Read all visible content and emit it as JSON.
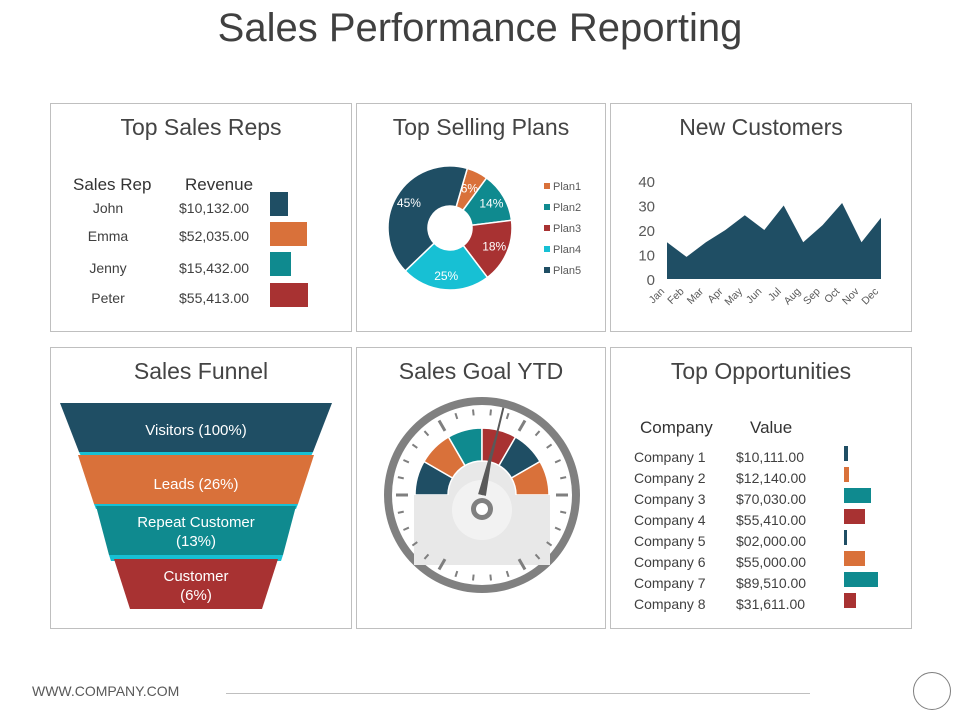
{
  "title": "Sales Performance Reporting",
  "colors": {
    "navy": "#1f4e64",
    "orange": "#d9713a",
    "teal": "#0f8a8f",
    "red": "#a83232",
    "cyan": "#17c0d4"
  },
  "top_sales_reps": {
    "title": "Top Sales Reps",
    "col_rep": "Sales Rep",
    "col_revenue": "Revenue",
    "rows": [
      {
        "name": "John",
        "revenue": "$10,132.00"
      },
      {
        "name": "Emma",
        "revenue": "$52,035.00"
      },
      {
        "name": "Jenny",
        "revenue": "$15,432.00"
      },
      {
        "name": "Peter",
        "revenue": "$55,413.00"
      }
    ]
  },
  "top_selling_plans": {
    "title": "Top Selling Plans"
  },
  "new_customers": {
    "title": "New Customers"
  },
  "sales_funnel": {
    "title": "Sales Funnel",
    "stages": [
      "Visitors (100%)",
      "Leads (26%)",
      "Repeat Customer\n(13%)",
      "Customer\n(6%)"
    ]
  },
  "sales_goal": {
    "title": "Sales Goal YTD"
  },
  "top_opportunities": {
    "title": "Top Opportunities",
    "col_company": "Company",
    "col_value": "Value",
    "rows": [
      {
        "company": "Company 1",
        "value": "$10,111.00"
      },
      {
        "company": "Company 2",
        "value": "$12,140.00"
      },
      {
        "company": "Company 3",
        "value": "$70,030.00"
      },
      {
        "company": "Company 4",
        "value": "$55,410.00"
      },
      {
        "company": "Company 5",
        "value": "$02,000.00"
      },
      {
        "company": "Company 6",
        "value": "$55,000.00"
      },
      {
        "company": "Company 7",
        "value": "$89,510.00"
      },
      {
        "company": "Company 8",
        "value": "$31,611.00"
      }
    ]
  },
  "footer": {
    "url": "WWW.COMPANY.COM"
  },
  "chart_data": [
    {
      "type": "bar",
      "categories": [
        "John",
        "Emma",
        "Jenny",
        "Peter"
      ],
      "values": [
        10132,
        52035,
        15432,
        55413
      ],
      "colors": [
        "#1f4e64",
        "#d9713a",
        "#0f8a8f",
        "#a83232"
      ]
    },
    {
      "type": "pie",
      "labels": [
        "Plan1",
        "Plan2",
        "Plan3",
        "Plan4",
        "Plan5"
      ],
      "values": [
        6,
        14,
        18,
        25,
        45
      ],
      "colors": [
        "#d9713a",
        "#0f8a8f",
        "#a83232",
        "#17c0d4",
        "#1f4e64"
      ],
      "legend": "right"
    },
    {
      "type": "area",
      "categories": [
        "Jan",
        "Feb",
        "Mar",
        "Apr",
        "May",
        "Jun",
        "Jul",
        "Aug",
        "Sep",
        "Oct",
        "Nov",
        "Dec"
      ],
      "values": [
        15,
        9,
        15,
        20,
        26,
        20,
        30,
        15,
        22,
        31,
        15,
        25
      ],
      "ylim": [
        0,
        40
      ],
      "yticks": [
        "0",
        "10",
        "20",
        "30",
        "40"
      ]
    },
    {
      "type": "bar",
      "categories": [
        "Company 1",
        "Company 2",
        "Company 3",
        "Company 4",
        "Company 5",
        "Company 6",
        "Company 7",
        "Company 8"
      ],
      "values": [
        10111,
        12140,
        70030,
        55410,
        2000,
        55000,
        89510,
        31611
      ],
      "colors": [
        "#1f4e64",
        "#d9713a",
        "#0f8a8f",
        "#a83232",
        "#1f4e64",
        "#d9713a",
        "#0f8a8f",
        "#a83232"
      ]
    }
  ]
}
